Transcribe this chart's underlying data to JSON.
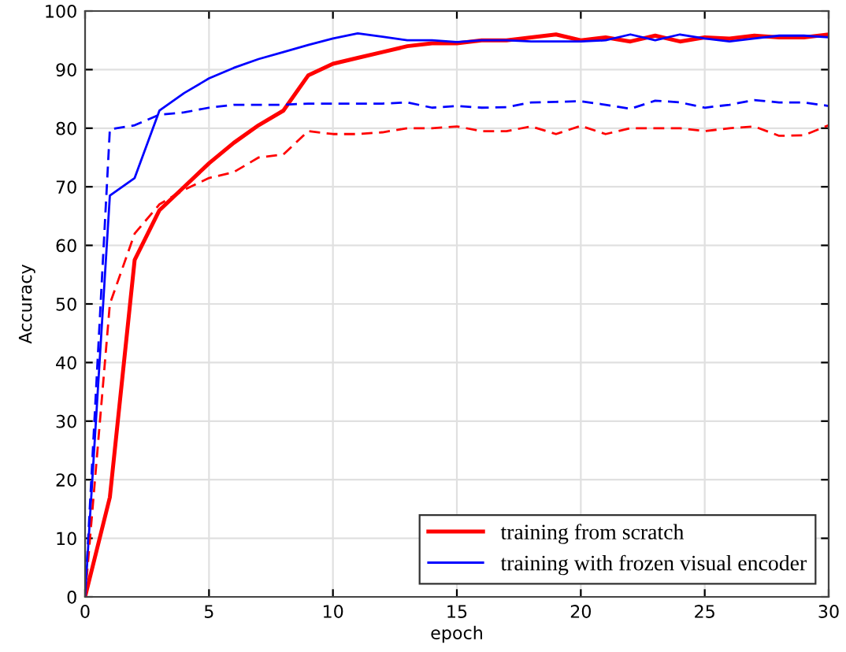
{
  "chart_data": {
    "type": "line",
    "xlabel": "epoch",
    "ylabel": "Accuracy",
    "xlim": [
      0,
      30
    ],
    "ylim": [
      0,
      100
    ],
    "xticks": [
      0,
      5,
      10,
      15,
      20,
      25,
      30
    ],
    "yticks": [
      0,
      10,
      20,
      30,
      40,
      50,
      60,
      70,
      80,
      90,
      100
    ],
    "grid": true,
    "legend": "bottom right",
    "marker": "none",
    "x": [
      0,
      1,
      2,
      3,
      4,
      5,
      6,
      7,
      8,
      9,
      10,
      11,
      12,
      13,
      14,
      15,
      16,
      17,
      18,
      19,
      20,
      21,
      22,
      23,
      24,
      25,
      26,
      27,
      28,
      29,
      30
    ],
    "series": [
      {
        "name": "training from scratch",
        "color": "#ff0000",
        "line_style": "solid",
        "values": [
          0,
          17,
          57.5,
          66,
          70,
          74,
          77.5,
          80.5,
          83,
          89,
          91,
          92,
          93,
          94,
          94.5,
          94.5,
          95,
          95,
          95.5,
          96,
          95,
          95.5,
          94.8,
          95.8,
          94.8,
          95.5,
          95.3,
          95.8,
          95.5,
          95.5,
          96
        ]
      },
      {
        "name": "training with frozen visual encoder",
        "color": "#0000ff",
        "line_style": "solid",
        "values": [
          0,
          68.5,
          71.5,
          83,
          86,
          88.5,
          90.3,
          91.8,
          93,
          94.2,
          95.3,
          96.2,
          95.6,
          95,
          95,
          94.7,
          95,
          95,
          94.8,
          94.8,
          94.8,
          95,
          96,
          95,
          96,
          95.3,
          94.8,
          95.3,
          95.8,
          95.8,
          95.5
        ]
      },
      {
        "color": "#ff0000",
        "line_style": "dashed",
        "values": [
          0,
          50,
          62,
          67,
          69.5,
          71.5,
          72.5,
          75,
          75.5,
          79.5,
          79,
          79,
          79.3,
          80,
          80,
          80.3,
          79.5,
          79.5,
          80.3,
          79,
          80.4,
          79,
          80,
          80,
          80,
          79.5,
          80,
          80.3,
          78.7,
          78.8,
          80.5
        ]
      },
      {
        "color": "#0000ff",
        "line_style": "dashed",
        "values": [
          0,
          79.8,
          80.5,
          82.3,
          82.7,
          83.5,
          84,
          84,
          84,
          84.2,
          84.2,
          84.2,
          84.2,
          84.4,
          83.5,
          83.8,
          83.5,
          83.6,
          84.4,
          84.5,
          84.6,
          84,
          83.3,
          84.7,
          84.4,
          83.5,
          84,
          84.8,
          84.4,
          84.4,
          83.8
        ]
      }
    ]
  }
}
